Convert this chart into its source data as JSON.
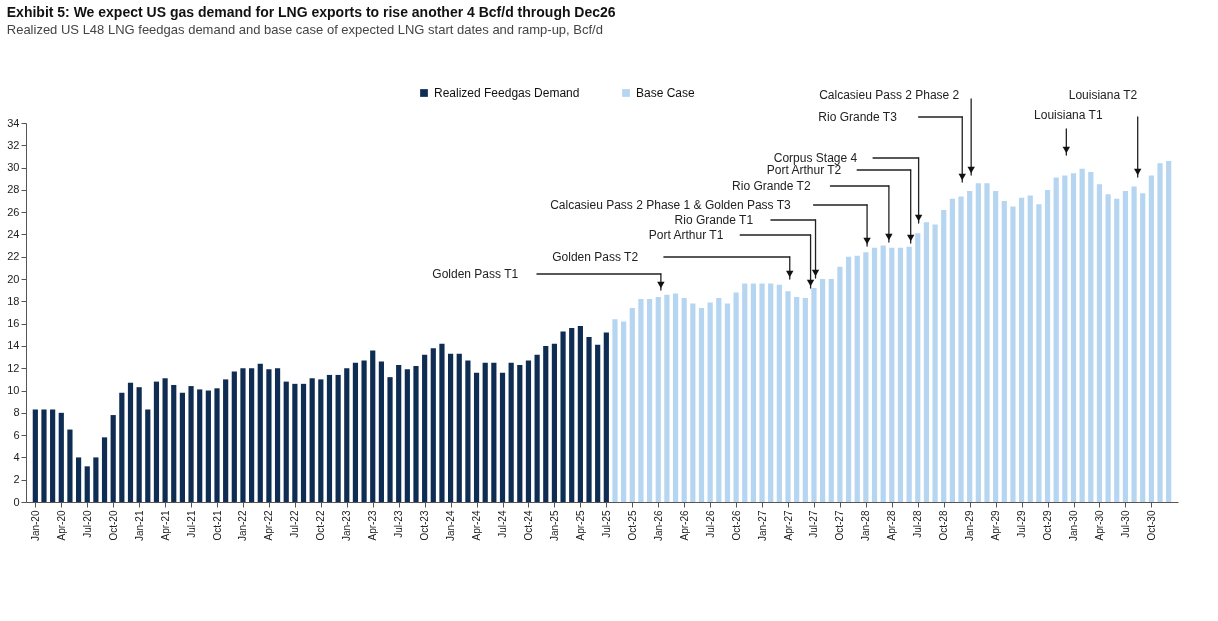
{
  "chart_data": {
    "type": "bar",
    "title": "Exhibit 5: We expect US gas demand for LNG exports to rise another 4 Bcf/d through Dec26",
    "subtitle": "Realized US L48 LNG feedgas demand and base case of expected LNG start dates and ramp-up, Bcf/d",
    "categories": [
      "Jan-20",
      null,
      null,
      "Apr-20",
      null,
      null,
      "Jul-20",
      null,
      null,
      "Oct-20",
      null,
      null,
      "Jan-21",
      null,
      null,
      "Apr-21",
      null,
      null,
      "Jul-21",
      null,
      null,
      "Oct-21",
      null,
      null,
      "Jan-22",
      null,
      null,
      "Apr-22",
      null,
      null,
      "Jul-22",
      null,
      null,
      "Oct-22",
      null,
      null,
      "Jan-23",
      null,
      null,
      "Apr-23",
      null,
      null,
      "Jul-23",
      null,
      null,
      "Oct-23",
      null,
      null,
      "Jan-24",
      null,
      null,
      "Apr-24",
      null,
      null,
      "Jul-24",
      null,
      null,
      "Oct-24",
      null,
      null,
      "Jan-25",
      null,
      null,
      "Apr-25",
      null,
      null,
      "Jul-25",
      null,
      null,
      "Oct-25",
      null,
      null,
      "Jan-26",
      null,
      null,
      "Apr-26",
      null,
      null,
      "Jul-26",
      null,
      null,
      "Oct-26",
      null,
      null,
      "Jan-27",
      null,
      null,
      "Apr-27",
      null,
      null,
      "Jul-27",
      null,
      null,
      "Oct-27",
      null,
      null,
      "Jan-28",
      null,
      null,
      "Apr-28",
      null,
      null,
      "Jul-28",
      null,
      null,
      "Oct-28",
      null,
      null,
      "Jan-29",
      null,
      null,
      "Apr-29",
      null,
      null,
      "Jul-29",
      null,
      null,
      "Oct-29",
      null,
      null,
      "Jan-30",
      null,
      null,
      "Apr-30",
      null,
      null,
      "Jul-30",
      null,
      null,
      "Oct-30",
      null,
      null
    ],
    "series": [
      {
        "name": "Realized Feedgas Demand",
        "color": "#0f2d52",
        "values": [
          8.3,
          8.3,
          8.3,
          8.0,
          6.5,
          4.0,
          3.2,
          4.0,
          5.8,
          7.8,
          9.8,
          10.7,
          10.3,
          8.3,
          10.8,
          11.1,
          10.5,
          9.8,
          10.4,
          10.1,
          10.0,
          10.2,
          11.0,
          11.7,
          12.0,
          12.0,
          12.4,
          11.9,
          12.0,
          10.8,
          10.6,
          10.6,
          11.1,
          11.0,
          11.4,
          11.4,
          12.0,
          12.5,
          12.7,
          13.6,
          12.6,
          11.2,
          12.3,
          11.9,
          12.2,
          13.2,
          13.8,
          14.2,
          13.3,
          13.3,
          12.7,
          11.6,
          12.5,
          12.5,
          11.6,
          12.5,
          12.3,
          12.7,
          13.2,
          14.0,
          14.2,
          15.3,
          15.6,
          15.8,
          14.8,
          14.1,
          15.2,
          null,
          null,
          null,
          null,
          null,
          null,
          null,
          null,
          null,
          null,
          null,
          null,
          null,
          null,
          null,
          null,
          null,
          null,
          null,
          null,
          null,
          null,
          null,
          null,
          null,
          null,
          null,
          null,
          null,
          null,
          null,
          null,
          null,
          null,
          null,
          null,
          null,
          null,
          null,
          null,
          null,
          null,
          null,
          null,
          null,
          null,
          null,
          null,
          null,
          null,
          null,
          null,
          null,
          null,
          null,
          null,
          null,
          null,
          null,
          null,
          null,
          null,
          null,
          null,
          null
        ]
      },
      {
        "name": "Base Case",
        "color": "#b5d5f0",
        "values": [
          null,
          null,
          null,
          null,
          null,
          null,
          null,
          null,
          null,
          null,
          null,
          null,
          null,
          null,
          null,
          null,
          null,
          null,
          null,
          null,
          null,
          null,
          null,
          null,
          null,
          null,
          null,
          null,
          null,
          null,
          null,
          null,
          null,
          null,
          null,
          null,
          null,
          null,
          null,
          null,
          null,
          null,
          null,
          null,
          null,
          null,
          null,
          null,
          null,
          null,
          null,
          null,
          null,
          null,
          null,
          null,
          null,
          null,
          null,
          null,
          null,
          null,
          null,
          null,
          null,
          null,
          null,
          16.4,
          16.2,
          17.4,
          18.2,
          18.2,
          18.4,
          18.6,
          18.7,
          18.3,
          17.8,
          17.4,
          17.9,
          18.3,
          17.8,
          18.8,
          19.6,
          19.6,
          19.6,
          19.6,
          19.5,
          18.9,
          18.4,
          18.3,
          19.2,
          20.0,
          20.0,
          21.1,
          22.0,
          22.1,
          22.4,
          22.8,
          23.0,
          22.8,
          22.8,
          22.9,
          24.1,
          25.1,
          24.9,
          26.2,
          27.2,
          27.4,
          27.9,
          28.6,
          28.6,
          27.9,
          27.0,
          26.5,
          27.3,
          27.5,
          26.7,
          28.0,
          29.1,
          29.3,
          29.5,
          29.9,
          29.6,
          28.5,
          27.6,
          27.2,
          27.9,
          28.3,
          27.7,
          29.3,
          30.4,
          30.6
        ]
      }
    ],
    "ylim": [
      0,
      34
    ],
    "yticks": [
      0,
      2,
      4,
      6,
      8,
      10,
      12,
      14,
      16,
      18,
      20,
      22,
      24,
      26,
      28,
      30,
      32,
      34
    ],
    "grid": false,
    "legend": "top",
    "annotations": [
      "Golden Pass T1",
      "Golden Pass T2",
      "Port Arthur T1",
      "Rio Grande T1",
      "Calcasieu Pass 2 Phase 1 & Golden Pass T3",
      "Rio Grande T2",
      "Port Arthur T2",
      "Corpus Stage 4",
      "Calcasieu Pass 2 Phase 2",
      "Rio Grande T3",
      "Louisiana T1",
      "Louisiana T2"
    ]
  }
}
